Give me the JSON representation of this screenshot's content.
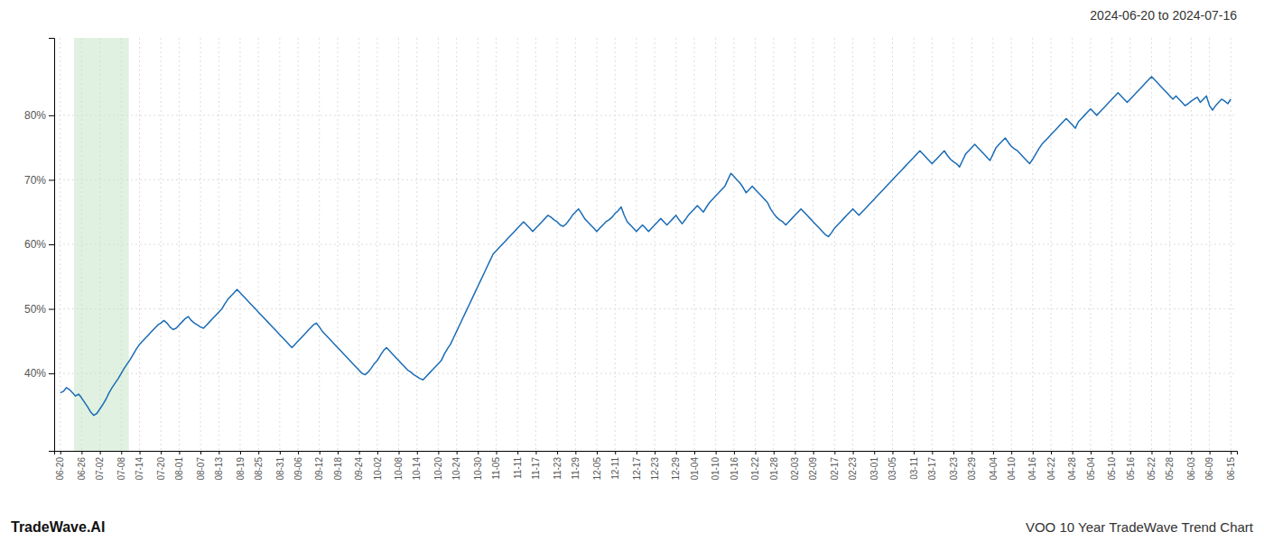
{
  "chart_data": {
    "type": "line",
    "title": "2024-06-20 to 2024-07-16",
    "annotations": [
      "TradeWave.AI",
      "VOO 10 Year TradeWave Trend Chart"
    ],
    "color": "#1a6cb5",
    "grid": true,
    "ylim": [
      28,
      92
    ],
    "yticks": [
      {
        "value": 40,
        "label": "40%"
      },
      {
        "value": 50,
        "label": "50%"
      },
      {
        "value": 60,
        "label": "60%"
      },
      {
        "value": 70,
        "label": "70%"
      },
      {
        "value": 80,
        "label": "80%"
      }
    ],
    "span": {
      "start": 5,
      "end": 22,
      "color": "#c8e6c9"
    },
    "categories": [
      "06-20",
      null,
      null,
      null,
      null,
      null,
      null,
      "06-26",
      null,
      null,
      null,
      null,
      null,
      "07-02",
      null,
      null,
      null,
      null,
      null,
      null,
      "07-08",
      null,
      null,
      null,
      null,
      null,
      "07-14",
      null,
      null,
      null,
      null,
      null,
      null,
      "07-20",
      null,
      null,
      null,
      null,
      null,
      "08-01",
      null,
      null,
      null,
      null,
      null,
      null,
      "08-07",
      null,
      null,
      null,
      null,
      null,
      "08-13",
      null,
      null,
      null,
      null,
      null,
      null,
      "08-19",
      null,
      null,
      null,
      null,
      null,
      "08-25",
      null,
      null,
      null,
      null,
      null,
      null,
      "08-31",
      null,
      null,
      null,
      null,
      null,
      "09-06",
      null,
      null,
      null,
      null,
      null,
      null,
      "09-12",
      null,
      null,
      null,
      null,
      null,
      "09-18",
      null,
      null,
      null,
      null,
      null,
      null,
      "09-24",
      null,
      null,
      null,
      null,
      null,
      "10-02",
      null,
      null,
      null,
      null,
      null,
      null,
      "10-08",
      null,
      null,
      null,
      null,
      null,
      "10-14",
      null,
      null,
      null,
      null,
      null,
      null,
      "10-20",
      null,
      null,
      null,
      null,
      null,
      "10-24",
      null,
      null,
      null,
      null,
      null,
      null,
      "10-30",
      null,
      null,
      null,
      null,
      null,
      "11-05",
      null,
      null,
      null,
      null,
      null,
      null,
      "11-11",
      null,
      null,
      null,
      null,
      null,
      "11-17",
      null,
      null,
      null,
      null,
      null,
      null,
      "11-23",
      null,
      null,
      null,
      null,
      null,
      "11-29",
      null,
      null,
      null,
      null,
      null,
      null,
      "12-05",
      null,
      null,
      null,
      null,
      null,
      "12-11",
      null,
      null,
      null,
      null,
      null,
      null,
      "12-17",
      null,
      null,
      null,
      null,
      null,
      "12-23",
      null,
      null,
      null,
      null,
      null,
      null,
      "12-29",
      null,
      null,
      null,
      null,
      null,
      "01-04",
      null,
      null,
      null,
      null,
      null,
      null,
      "01-10",
      null,
      null,
      null,
      null,
      null,
      "01-16",
      null,
      null,
      null,
      null,
      null,
      null,
      "01-22",
      null,
      null,
      null,
      null,
      null,
      "01-28",
      null,
      null,
      null,
      null,
      null,
      null,
      "02-03",
      null,
      null,
      null,
      null,
      null,
      "02-09",
      null,
      null,
      null,
      null,
      null,
      null,
      "02-17",
      null,
      null,
      null,
      null,
      null,
      "02-23",
      null,
      null,
      null,
      null,
      null,
      null,
      "03-01",
      null,
      null,
      null,
      null,
      null,
      "03-05",
      null,
      null,
      null,
      null,
      null,
      null,
      "03-11",
      null,
      null,
      null,
      null,
      null,
      "03-17",
      null,
      null,
      null,
      null,
      null,
      null,
      "03-23",
      null,
      null,
      null,
      null,
      null,
      "03-29",
      null,
      null,
      null,
      null,
      null,
      null,
      "04-04",
      null,
      null,
      null,
      null,
      null,
      "04-10",
      null,
      null,
      null,
      null,
      null,
      null,
      "04-16",
      null,
      null,
      null,
      null,
      null,
      "04-22",
      null,
      null,
      null,
      null,
      null,
      null,
      "04-28",
      null,
      null,
      null,
      null,
      null,
      "05-04",
      null,
      null,
      null,
      null,
      null,
      null,
      "05-10",
      null,
      null,
      null,
      null,
      null,
      "05-16",
      null,
      null,
      null,
      null,
      null,
      null,
      "05-22",
      null,
      null,
      null,
      null,
      null,
      "05-28",
      null,
      null,
      null,
      null,
      null,
      null,
      "06-03",
      null,
      null,
      null,
      null,
      null,
      "06-09",
      null,
      null,
      null,
      null,
      null,
      null,
      "06-15"
    ],
    "values": [
      37.0,
      37.2,
      37.8,
      37.5,
      37.0,
      36.5,
      36.8,
      36.2,
      35.5,
      34.8,
      34.0,
      33.5,
      33.8,
      34.5,
      35.2,
      36.0,
      37.0,
      37.8,
      38.5,
      39.2,
      40.0,
      40.8,
      41.5,
      42.2,
      43.0,
      43.8,
      44.5,
      45.0,
      45.5,
      46.0,
      46.5,
      47.0,
      47.5,
      47.8,
      48.2,
      47.8,
      47.2,
      46.8,
      47.0,
      47.5,
      48.0,
      48.5,
      48.8,
      48.2,
      47.8,
      47.5,
      47.2,
      47.0,
      47.5,
      48.0,
      48.5,
      49.0,
      49.5,
      50.0,
      50.8,
      51.5,
      52.0,
      52.5,
      53.0,
      52.5,
      52.0,
      51.5,
      51.0,
      50.5,
      50.0,
      49.5,
      49.0,
      48.5,
      48.0,
      47.5,
      47.0,
      46.5,
      46.0,
      45.5,
      45.0,
      44.5,
      44.0,
      44.5,
      45.0,
      45.5,
      46.0,
      46.5,
      47.0,
      47.5,
      47.8,
      47.2,
      46.5,
      46.0,
      45.5,
      45.0,
      44.5,
      44.0,
      43.5,
      43.0,
      42.5,
      42.0,
      41.5,
      41.0,
      40.5,
      40.0,
      39.8,
      40.2,
      40.8,
      41.5,
      42.0,
      42.8,
      43.5,
      44.0,
      43.5,
      43.0,
      42.5,
      42.0,
      41.5,
      41.0,
      40.5,
      40.2,
      39.8,
      39.5,
      39.2,
      39.0,
      39.5,
      40.0,
      40.5,
      41.0,
      41.5,
      42.0,
      43.0,
      43.8,
      44.5,
      45.5,
      46.5,
      47.5,
      48.5,
      49.5,
      50.5,
      51.5,
      52.5,
      53.5,
      54.5,
      55.5,
      56.5,
      57.5,
      58.5,
      59.0,
      59.5,
      60.0,
      60.5,
      61.0,
      61.5,
      62.0,
      62.5,
      63.0,
      63.5,
      63.0,
      62.5,
      62.0,
      62.5,
      63.0,
      63.5,
      64.0,
      64.5,
      64.2,
      63.8,
      63.5,
      63.0,
      62.8,
      63.2,
      63.8,
      64.5,
      65.0,
      65.5,
      64.8,
      64.0,
      63.5,
      63.0,
      62.5,
      62.0,
      62.5,
      63.0,
      63.5,
      63.8,
      64.2,
      64.8,
      65.2,
      65.8,
      64.5,
      63.5,
      63.0,
      62.5,
      62.0,
      62.5,
      63.0,
      62.5,
      62.0,
      62.5,
      63.0,
      63.5,
      64.0,
      63.5,
      63.0,
      63.5,
      64.0,
      64.5,
      63.8,
      63.2,
      63.8,
      64.5,
      65.0,
      65.5,
      66.0,
      65.5,
      65.0,
      65.8,
      66.5,
      67.0,
      67.5,
      68.0,
      68.5,
      69.0,
      70.0,
      71.0,
      70.5,
      70.0,
      69.5,
      68.8,
      68.0,
      68.5,
      69.0,
      68.5,
      68.0,
      67.5,
      67.0,
      66.5,
      65.5,
      64.8,
      64.2,
      63.8,
      63.5,
      63.0,
      63.5,
      64.0,
      64.5,
      65.0,
      65.5,
      65.0,
      64.5,
      64.0,
      63.5,
      63.0,
      62.5,
      62.0,
      61.5,
      61.2,
      61.8,
      62.5,
      63.0,
      63.5,
      64.0,
      64.5,
      65.0,
      65.5,
      65.0,
      64.5,
      65.0,
      65.5,
      66.0,
      66.5,
      67.0,
      67.5,
      68.0,
      68.5,
      69.0,
      69.5,
      70.0,
      70.5,
      71.0,
      71.5,
      72.0,
      72.5,
      73.0,
      73.5,
      74.0,
      74.5,
      74.0,
      73.5,
      73.0,
      72.5,
      73.0,
      73.5,
      74.0,
      74.5,
      73.8,
      73.2,
      72.8,
      72.5,
      72.0,
      73.0,
      74.0,
      74.5,
      75.0,
      75.5,
      75.0,
      74.5,
      74.0,
      73.5,
      73.0,
      74.0,
      75.0,
      75.5,
      76.0,
      76.5,
      75.8,
      75.2,
      74.8,
      74.5,
      74.0,
      73.5,
      73.0,
      72.5,
      73.2,
      74.0,
      74.8,
      75.5,
      76.0,
      76.5,
      77.0,
      77.5,
      78.0,
      78.5,
      79.0,
      79.5,
      79.0,
      78.5,
      78.0,
      79.0,
      79.5,
      80.0,
      80.5,
      81.0,
      80.5,
      80.0,
      80.5,
      81.0,
      81.5,
      82.0,
      82.5,
      83.0,
      83.5,
      83.0,
      82.5,
      82.0,
      82.5,
      83.0,
      83.5,
      84.0,
      84.5,
      85.0,
      85.5,
      86.0,
      85.5,
      85.0,
      84.5,
      84.0,
      83.5,
      83.0,
      82.5,
      83.0,
      82.5,
      82.0,
      81.5,
      81.8,
      82.2,
      82.5,
      82.8,
      82.0,
      82.5,
      83.0,
      81.5,
      80.8,
      81.5,
      82.0,
      82.5,
      82.2,
      81.8,
      82.5
    ]
  }
}
